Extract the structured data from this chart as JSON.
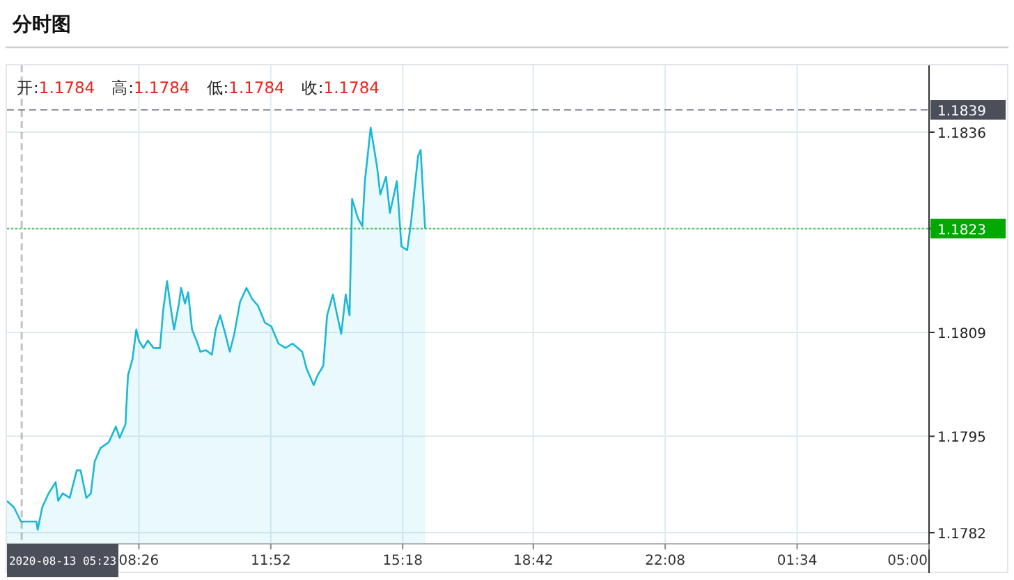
{
  "chart_data": {
    "type": "area",
    "title": "分时图",
    "annotations": [
      "开:1.1784",
      "高:1.1784",
      "低:1.1784",
      "收:1.1784"
    ],
    "x": [
      "2020-08-13T05:00",
      "2020-08-13T05:11",
      "2020-08-13T05:22",
      "2020-08-13T05:46",
      "2020-08-13T05:48",
      "2020-08-13T05:55",
      "2020-08-13T06:05",
      "2020-08-13T06:16",
      "2020-08-13T06:20",
      "2020-08-13T06:27",
      "2020-08-13T06:38",
      "2020-08-13T06:49",
      "2020-08-13T06:55",
      "2020-08-13T07:04",
      "2020-08-13T07:11",
      "2020-08-13T07:17",
      "2020-08-13T07:26",
      "2020-08-13T07:39",
      "2020-08-13T07:50",
      "2020-08-13T07:56",
      "2020-08-13T08:05",
      "2020-08-13T08:09",
      "2020-08-13T08:16",
      "2020-08-13T08:22",
      "2020-08-13T08:26",
      "2020-08-13T08:33",
      "2020-08-13T08:40",
      "2020-08-13T08:49",
      "2020-08-13T08:59",
      "2020-08-13T09:04",
      "2020-08-13T09:10",
      "2020-08-13T09:17",
      "2020-08-13T09:21",
      "2020-08-13T09:28",
      "2020-08-13T09:32",
      "2020-08-13T09:38",
      "2020-08-13T09:43",
      "2020-08-13T09:49",
      "2020-08-13T09:56",
      "2020-08-13T10:02",
      "2020-08-13T10:11",
      "2020-08-13T10:20",
      "2020-08-13T10:26",
      "2020-08-13T10:33",
      "2020-08-13T10:41",
      "2020-08-13T10:48",
      "2020-08-13T10:55",
      "2020-08-13T11:04",
      "2020-08-13T11:14",
      "2020-08-13T11:23",
      "2020-08-13T11:32",
      "2020-08-13T11:43",
      "2020-08-13T11:53",
      "2020-08-13T12:04",
      "2020-08-13T12:15",
      "2020-08-13T12:26",
      "2020-08-13T12:41",
      "2020-08-13T12:48",
      "2020-08-13T12:59",
      "2020-08-13T13:05",
      "2020-08-13T13:14",
      "2020-08-13T13:20",
      "2020-08-13T13:29",
      "2020-08-13T13:35",
      "2020-08-13T13:42",
      "2020-08-13T13:49",
      "2020-08-13T13:55",
      "2020-08-13T13:59",
      "2020-08-13T14:08",
      "2020-08-13T14:15",
      "2020-08-13T14:19",
      "2020-08-13T14:28",
      "2020-08-13T14:32",
      "2020-08-13T14:38",
      "2020-08-13T14:43",
      "2020-08-13T14:52",
      "2020-08-13T14:58",
      "2020-08-13T15:09",
      "2020-08-13T15:16",
      "2020-08-13T15:25",
      "2020-08-13T15:31",
      "2020-08-13T15:42",
      "2020-08-13T15:46",
      "2020-08-13T15:53"
    ],
    "series": [
      {
        "color": "#1bb8d4",
        "values": [
          1.17863,
          1.17854,
          1.17835,
          1.17835,
          1.17824,
          1.17854,
          1.17873,
          1.17888,
          1.17863,
          1.17873,
          1.17867,
          1.17904,
          1.17904,
          1.17867,
          1.17873,
          1.17916,
          1.17934,
          1.17942,
          1.17963,
          1.17948,
          1.17966,
          1.18032,
          1.18054,
          1.18094,
          1.18079,
          1.18069,
          1.18079,
          1.18069,
          1.18069,
          1.1812,
          1.18159,
          1.18116,
          1.18094,
          1.18126,
          1.1815,
          1.18129,
          1.18144,
          1.18094,
          1.18079,
          1.18064,
          1.18066,
          1.1806,
          1.18094,
          1.18113,
          1.18088,
          1.18064,
          1.18088,
          1.18131,
          1.1815,
          1.18135,
          1.18126,
          1.18103,
          1.18098,
          1.18075,
          1.18069,
          1.18075,
          1.18064,
          1.18041,
          1.18019,
          1.18032,
          1.18045,
          1.18113,
          1.18141,
          1.18116,
          1.18088,
          1.18141,
          1.18113,
          1.1827,
          1.18244,
          1.18233,
          1.18294,
          1.18366,
          1.18345,
          1.18313,
          1.18276,
          1.183,
          1.18251,
          1.18294,
          1.18206,
          1.18201,
          1.18238,
          1.18328,
          1.18336,
          1.1823
        ]
      }
    ],
    "xlim": [
      "2020-08-13T05:00",
      "2020-08-14T05:00"
    ],
    "xticks": [
      {
        "value": "2020-08-13T08:26",
        "label": "08:26"
      },
      {
        "value": "2020-08-13T11:52",
        "label": "11:52"
      },
      {
        "value": "2020-08-13T15:18",
        "label": "15:18"
      },
      {
        "value": "2020-08-13T18:42",
        "label": "18:42"
      },
      {
        "value": "2020-08-13T22:08",
        "label": "22:08"
      },
      {
        "value": "2020-08-14T01:34",
        "label": "01:34"
      },
      {
        "value": "2020-08-14T05:00",
        "label": "05:00"
      }
    ],
    "ylim": [
      1.17805,
      1.1845
    ],
    "yticks": [
      1.1782,
      1.1795,
      1.1809,
      1.1823,
      1.1836
    ],
    "grid": true,
    "ref_lines": [
      {
        "axis": "y",
        "value": 1.1839,
        "label": "1.1839",
        "color": "#4a4f5a",
        "line_style": "dashed"
      },
      {
        "axis": "y",
        "value": 1.1823,
        "label": "1.1823",
        "color": "#00a800",
        "line_style": "dotted"
      },
      {
        "axis": "x",
        "value": "2020-08-13T05:23",
        "label": "2020-08-13 05:23",
        "color": "#4a4f5a",
        "line_style": "dashed"
      }
    ]
  }
}
